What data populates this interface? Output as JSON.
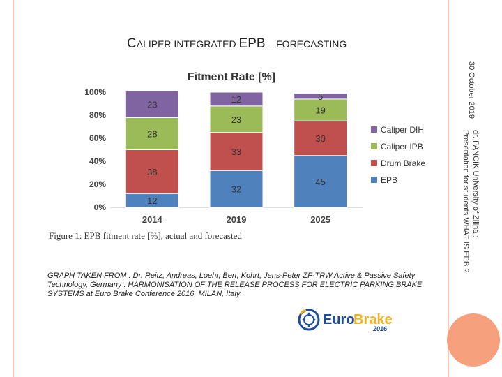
{
  "slide": {
    "title_parts": [
      {
        "text": "C",
        "size": "big"
      },
      {
        "text": "ALIPER INTEGRATED ",
        "size": "small"
      },
      {
        "text": "EPB",
        "size": "big"
      },
      {
        "text": " – ",
        "size": "small"
      },
      {
        "text": "FORECASTING",
        "size": "small"
      }
    ],
    "date": "30 October 2019",
    "author_line1": "dr. PANCIK University of Zilina :",
    "author_line2": "Presentation for students WHAT IS EPB ?",
    "source_text": "GRAPH TAKEN FROM : Dr. Reitz, Andreas, Loehr, Bert, Kohrt, Jens-Peter ZF-TRW Active & Passive Safety Technology, Germany : HARMONISATION OF THE RELEASE PROCESS FOR ELECTRIC PARKING BRAKE SYSTEMS at Euro Brake Conference 2016, MILAN, Italy",
    "logo": {
      "word1": "Euro",
      "word2": "Brake",
      "year": "2016",
      "icon": "brake-disc-icon"
    }
  },
  "colors": {
    "title": "#222222",
    "accent_line": "#f6c7b3",
    "accent_circle": "#f6a07e",
    "logo_blue": "#1d4e9e",
    "logo_gold": "#f0b323"
  },
  "chart_data": {
    "type": "bar",
    "stacked": true,
    "title": "Fitment Rate [%]",
    "categories": [
      "2014",
      "2019",
      "2025"
    ],
    "series": [
      {
        "name": "EPB",
        "color": "#4f81bd",
        "values": [
          12,
          32,
          45
        ]
      },
      {
        "name": "Drum Brake",
        "color": "#c0504d",
        "values": [
          38,
          33,
          30
        ]
      },
      {
        "name": "Caliper IPB",
        "color": "#9bbb59",
        "values": [
          28,
          23,
          19
        ]
      },
      {
        "name": "Caliper DIH",
        "color": "#8064a2",
        "values": [
          23,
          12,
          5
        ]
      }
    ],
    "ylim": [
      0,
      100
    ],
    "yticks": [
      "0%",
      "20%",
      "40%",
      "60%",
      "80%",
      "100%"
    ],
    "grid": false,
    "legend": "right",
    "caption": "Figure 1: EPB fitment rate [%], actual and forecasted"
  }
}
